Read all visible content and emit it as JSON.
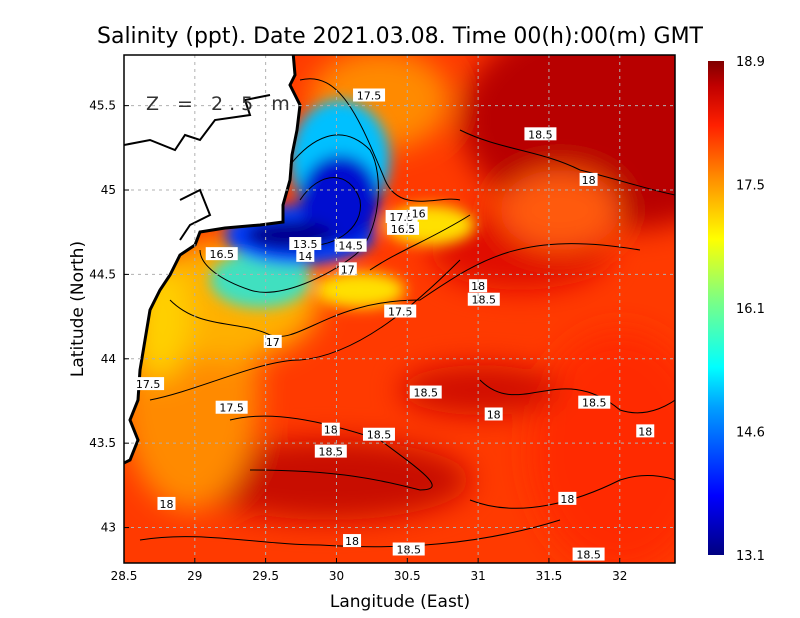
{
  "chart_data": {
    "type": "heatmap",
    "title": "Salinity (ppt). Date 2021.03.08. Time 00(h):00(m) GMT",
    "xlabel": "Langitude (East)",
    "ylabel": "Latitude (North)",
    "depth_label": "Z = 2.5 m",
    "xlim": [
      28.5,
      32.39
    ],
    "ylim": [
      42.79,
      45.8
    ],
    "xticks": [
      28.5,
      29,
      29.5,
      30,
      30.5,
      31,
      31.5,
      32
    ],
    "xtick_labels": [
      "28.5",
      "29",
      "29.5",
      "30",
      "30.5",
      "31",
      "31.5",
      "32"
    ],
    "yticks": [
      43,
      43.5,
      44,
      44.5,
      45,
      45.5
    ],
    "ytick_labels": [
      "43",
      "43.5",
      "44",
      "44.5",
      "45",
      "45.5"
    ],
    "grid": true,
    "colorbar": {
      "min": 13.1,
      "max": 18.9,
      "tick_labels": [
        "18.9",
        "17.5",
        "16.1",
        "14.6",
        "13.1"
      ],
      "colors": [
        "#000080",
        "#0000ff",
        "#00a0ff",
        "#00ffff",
        "#80ff80",
        "#ffff00",
        "#ff9000",
        "#ff2000",
        "#c00000",
        "#800000"
      ]
    },
    "contour_labels": [
      {
        "text": "17.5",
        "lon": 30.23,
        "lat": 45.56
      },
      {
        "text": "18.5",
        "lon": 31.44,
        "lat": 45.33
      },
      {
        "text": "18",
        "lon": 31.78,
        "lat": 45.06
      },
      {
        "text": "17.5",
        "lon": 30.46,
        "lat": 44.84
      },
      {
        "text": "16",
        "lon": 30.58,
        "lat": 44.86
      },
      {
        "text": "16.5",
        "lon": 30.47,
        "lat": 44.77
      },
      {
        "text": "16.5",
        "lon": 29.19,
        "lat": 44.62
      },
      {
        "text": "13.5",
        "lon": 29.78,
        "lat": 44.68
      },
      {
        "text": "14",
        "lon": 29.78,
        "lat": 44.61
      },
      {
        "text": "14.5",
        "lon": 30.1,
        "lat": 44.67
      },
      {
        "text": "17",
        "lon": 30.08,
        "lat": 44.53
      },
      {
        "text": "18",
        "lon": 31.0,
        "lat": 44.43
      },
      {
        "text": "18.5",
        "lon": 31.04,
        "lat": 44.35
      },
      {
        "text": "17.5",
        "lon": 30.45,
        "lat": 44.28
      },
      {
        "text": "17",
        "lon": 29.55,
        "lat": 44.1
      },
      {
        "text": "17.5",
        "lon": 28.67,
        "lat": 43.85
      },
      {
        "text": "18.5",
        "lon": 30.63,
        "lat": 43.8
      },
      {
        "text": "17.5",
        "lon": 29.26,
        "lat": 43.71
      },
      {
        "text": "18.5",
        "lon": 31.82,
        "lat": 43.74
      },
      {
        "text": "18",
        "lon": 31.11,
        "lat": 43.67
      },
      {
        "text": "18",
        "lon": 29.96,
        "lat": 43.58
      },
      {
        "text": "18.5",
        "lon": 30.3,
        "lat": 43.55
      },
      {
        "text": "18.5",
        "lon": 29.96,
        "lat": 43.45
      },
      {
        "text": "18",
        "lon": 32.18,
        "lat": 43.57
      },
      {
        "text": "18",
        "lon": 28.8,
        "lat": 43.14
      },
      {
        "text": "18",
        "lon": 31.63,
        "lat": 43.17
      },
      {
        "text": "18",
        "lon": 30.11,
        "lat": 42.92
      },
      {
        "text": "18.5",
        "lon": 30.51,
        "lat": 42.87
      },
      {
        "text": "18.5",
        "lon": 31.78,
        "lat": 42.84
      }
    ]
  }
}
